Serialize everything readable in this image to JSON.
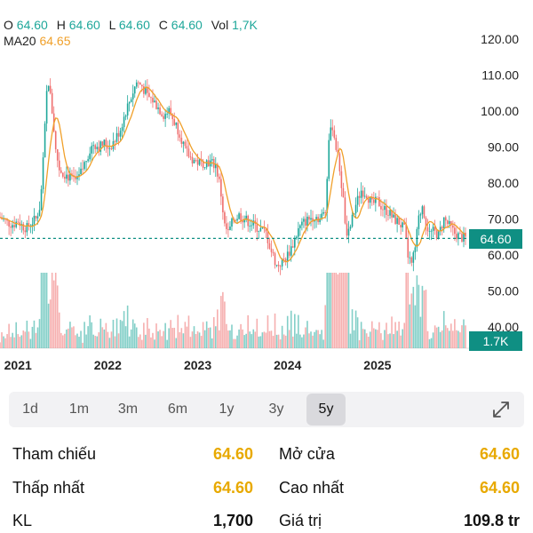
{
  "ohlc": {
    "o_label": "O",
    "o_value": "64.60",
    "h_label": "H",
    "h_value": "64.60",
    "l_label": "L",
    "l_value": "64.60",
    "c_label": "C",
    "c_value": "64.60",
    "vol_label": "Vol",
    "vol_value": "1,7K"
  },
  "ma": {
    "label": "MA20",
    "value": "64.65"
  },
  "colors": {
    "up": "#1ea79a",
    "down": "#ef6e6e",
    "ma": "#f0a02a",
    "badge": "#0f8f83",
    "highlight": "#e8a900"
  },
  "price_badge": "64.60",
  "volume_badge": "1.7K",
  "chart_data": {
    "type": "candlestick",
    "y_axis_ticks": [
      "120.00",
      "110.00",
      "100.00",
      "90.00",
      "80.00",
      "70.00",
      "60.00",
      "50.00",
      "40.00"
    ],
    "x_axis_ticks": [
      "2021",
      "2022",
      "2023",
      "2024",
      "2025"
    ],
    "ylim": [
      40,
      120
    ],
    "current_price": 64.6,
    "close_series": [
      [
        2020.8,
        70.5
      ],
      [
        2020.88,
        69.0
      ],
      [
        2020.95,
        68.5
      ],
      [
        2021.0,
        69.5
      ],
      [
        2021.05,
        68.0
      ],
      [
        2021.1,
        67.5
      ],
      [
        2021.15,
        69.0
      ],
      [
        2021.2,
        70.0
      ],
      [
        2021.25,
        74.0
      ],
      [
        2021.28,
        86.0
      ],
      [
        2021.31,
        100.0
      ],
      [
        2021.33,
        110.0
      ],
      [
        2021.36,
        104.0
      ],
      [
        2021.39,
        98.0
      ],
      [
        2021.42,
        89.0
      ],
      [
        2021.46,
        84.0
      ],
      [
        2021.5,
        83.0
      ],
      [
        2021.55,
        82.0
      ],
      [
        2021.6,
        81.0
      ],
      [
        2021.66,
        80.5
      ],
      [
        2021.72,
        84.0
      ],
      [
        2021.78,
        88.0
      ],
      [
        2021.84,
        91.0
      ],
      [
        2021.9,
        90.0
      ],
      [
        2021.96,
        91.0
      ],
      [
        2022.02,
        90.0
      ],
      [
        2022.08,
        92.0
      ],
      [
        2022.14,
        95.0
      ],
      [
        2022.2,
        100.0
      ],
      [
        2022.26,
        104.0
      ],
      [
        2022.32,
        108.0
      ],
      [
        2022.38,
        107.0
      ],
      [
        2022.44,
        104.0
      ],
      [
        2022.5,
        103.0
      ],
      [
        2022.56,
        101.0
      ],
      [
        2022.62,
        99.0
      ],
      [
        2022.68,
        100.0
      ],
      [
        2022.74,
        97.0
      ],
      [
        2022.8,
        94.0
      ],
      [
        2022.86,
        89.0
      ],
      [
        2022.92,
        87.0
      ],
      [
        2022.98,
        86.0
      ],
      [
        2023.04,
        85.5
      ],
      [
        2023.1,
        86.0
      ],
      [
        2023.16,
        85.5
      ],
      [
        2023.2,
        85.0
      ],
      [
        2023.25,
        79.0
      ],
      [
        2023.3,
        68.0
      ],
      [
        2023.34,
        66.0
      ],
      [
        2023.4,
        70.0
      ],
      [
        2023.46,
        71.0
      ],
      [
        2023.52,
        70.0
      ],
      [
        2023.58,
        69.0
      ],
      [
        2023.64,
        68.0
      ],
      [
        2023.7,
        67.0
      ],
      [
        2023.76,
        66.0
      ],
      [
        2023.82,
        61.0
      ],
      [
        2023.88,
        57.0
      ],
      [
        2023.94,
        58.0
      ],
      [
        2024.0,
        60.0
      ],
      [
        2024.06,
        63.0
      ],
      [
        2024.12,
        67.0
      ],
      [
        2024.18,
        69.0
      ],
      [
        2024.24,
        70.0
      ],
      [
        2024.3,
        71.0
      ],
      [
        2024.36,
        70.0
      ],
      [
        2024.42,
        72.0
      ],
      [
        2024.46,
        92.0
      ],
      [
        2024.5,
        96.0
      ],
      [
        2024.54,
        90.0
      ],
      [
        2024.58,
        84.0
      ],
      [
        2024.62,
        75.0
      ],
      [
        2024.66,
        64.0
      ],
      [
        2024.7,
        68.0
      ],
      [
        2024.76,
        74.0
      ],
      [
        2024.82,
        78.0
      ],
      [
        2024.88,
        77.0
      ],
      [
        2024.94,
        74.0
      ],
      [
        2025.0,
        75.0
      ],
      [
        2025.06,
        73.0
      ],
      [
        2025.12,
        72.0
      ],
      [
        2025.18,
        70.0
      ],
      [
        2025.24,
        69.0
      ],
      [
        2025.3,
        67.0
      ],
      [
        2025.34,
        60.0
      ],
      [
        2025.38,
        57.0
      ],
      [
        2025.42,
        62.0
      ],
      [
        2025.46,
        70.0
      ],
      [
        2025.5,
        74.0
      ],
      [
        2025.54,
        69.0
      ],
      [
        2025.58,
        66.0
      ],
      [
        2025.62,
        66.5
      ],
      [
        2025.68,
        65.5
      ],
      [
        2025.74,
        70.0
      ],
      [
        2025.8,
        68.0
      ],
      [
        2025.86,
        66.0
      ],
      [
        2025.92,
        65.0
      ],
      [
        2025.98,
        64.6
      ]
    ],
    "x_range": [
      2020.8,
      2025.98
    ]
  },
  "tabs": [
    "1d",
    "1m",
    "3m",
    "6m",
    "1y",
    "3y",
    "5y"
  ],
  "active_tab": "5y",
  "stats": {
    "ref_label": "Tham chiếu",
    "ref_value": "64.60",
    "open_label": "Mở cửa",
    "open_value": "64.60",
    "low_label": "Thấp nhất",
    "low_value": "64.60",
    "high_label": "Cao nhất",
    "high_value": "64.60",
    "vol_label": "KL",
    "vol_value": "1,700",
    "value_label": "Giá trị",
    "value_value": "109.8 tr"
  }
}
